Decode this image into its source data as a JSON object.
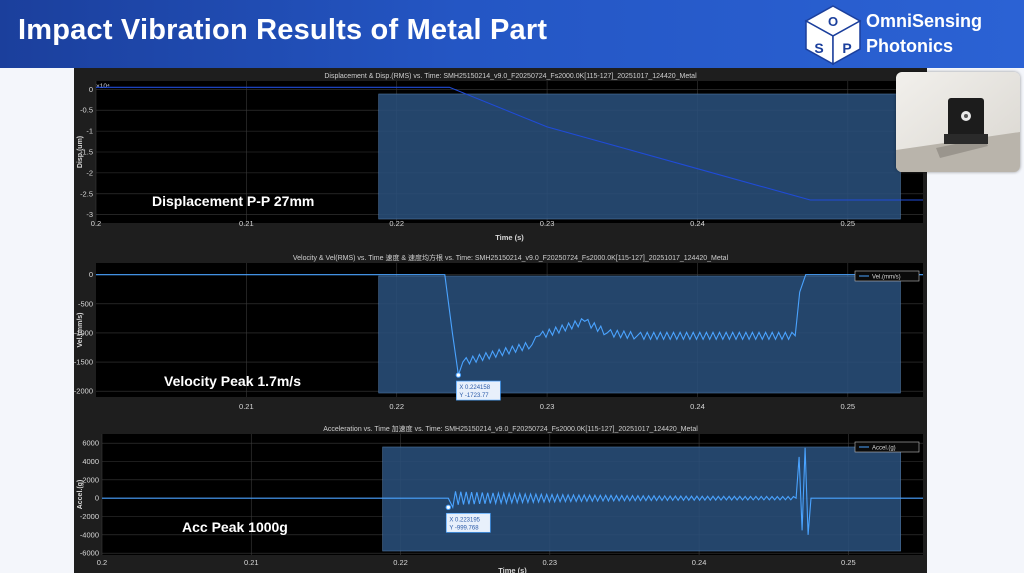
{
  "slide": {
    "title": "Impact Vibration Results of Metal Part",
    "brand_line1": "OmniSensing",
    "brand_line2": "Photonics",
    "logo_letters": [
      "O",
      "S",
      "P"
    ]
  },
  "colors": {
    "header": "#2456c4",
    "plot_bg": "#000000",
    "highlight": "#2a4f7a",
    "trace": "#1f4bd8",
    "trace_light": "#4aa3ff"
  },
  "chart_data": [
    {
      "type": "line",
      "title": "Displacement & Disp.(RMS) vs. Time: SMH25150214_v9.0_F20250724_Fs2000.0K[115-127]_20251017_124420_Metal",
      "xlabel": "Time (s)",
      "ylabel": "Disp.(um)",
      "y_exponent": "×10⁴",
      "xlim": [
        0.2,
        0.255
      ],
      "ylim": [
        -3.2,
        0.2
      ],
      "xticks": [
        0.2,
        0.21,
        0.22,
        0.23,
        0.24,
        0.25
      ],
      "xtick_labels": [
        "0.2",
        "0.21",
        "0.22",
        "0.23",
        "0.24",
        "0.25"
      ],
      "yticks": [
        0,
        -0.5,
        -1,
        -1.5,
        -2,
        -2.5,
        -3
      ],
      "ytick_labels": [
        "0",
        "-0.5",
        "-1",
        "-1.5",
        "-2",
        "-2.5",
        "-3"
      ],
      "highlight": [
        0.2188,
        0.2535
      ],
      "annotation": "Displacement P-P 27mm",
      "series": [
        {
          "x": [
            0.2,
            0.2235,
            0.23,
            0.24,
            0.2475,
            0.255
          ],
          "y": [
            0.05,
            0.05,
            -0.9,
            -1.9,
            -2.65,
            -2.65
          ]
        }
      ]
    },
    {
      "type": "line",
      "title": "Velocity & Vel(RMS) vs. Time 速度 & 速度均方根 vs. Time: SMH25150214_v9.0_F20250724_Fs2000.0K[115-127]_20251017_124420_Metal",
      "xlabel": "",
      "ylabel": "Vel.(mm/s)",
      "legend": "Vel.(mm/s)",
      "legend_position": "top-right",
      "xlim": [
        0.2,
        0.255
      ],
      "ylim": [
        -2100,
        200
      ],
      "xticks": [
        0.21,
        0.22,
        0.23,
        0.24,
        0.25
      ],
      "xtick_labels": [
        "0.21",
        "0.22",
        "0.23",
        "0.24",
        "0.25"
      ],
      "yticks": [
        0,
        -500,
        -1000,
        -1500,
        -2000
      ],
      "ytick_labels": [
        "0",
        "-500",
        "-1000",
        "-1500",
        "-2000"
      ],
      "highlight": [
        0.2188,
        0.2535
      ],
      "annotation": "Velocity Peak 1.7m/s",
      "datatip": {
        "x": 0.2241,
        "y": -1723.77,
        "label_x": "X 0.224158",
        "label_y": "Y -1723.77"
      },
      "series": [
        {
          "x": [
            0.2,
            0.2232,
            0.2237,
            0.2241,
            0.2244,
            0.229,
            0.2295,
            0.2325,
            0.234,
            0.236,
            0.2465,
            0.2468,
            0.2472,
            0.2475,
            0.255
          ],
          "y": [
            0,
            0,
            -1000,
            -1724,
            -1500,
            -1200,
            -1050,
            -800,
            -1000,
            -1050,
            -1050,
            -300,
            0,
            0,
            0
          ]
        }
      ]
    },
    {
      "type": "line",
      "title": "Acceleration vs. Time 加速度 vs. Time: SMH25150214_v9.0_F20250724_Fs2000.0K[115-127]_20251017_124420_Metal",
      "xlabel": "Time (s)",
      "ylabel": "Accel.(g)",
      "legend": "Accel.(g)",
      "legend_position": "top-right",
      "xlim": [
        0.2,
        0.255
      ],
      "ylim": [
        -6200,
        7000
      ],
      "xticks": [
        0.2,
        0.21,
        0.22,
        0.23,
        0.24,
        0.25
      ],
      "xtick_labels": [
        "0.2",
        "0.21",
        "0.22",
        "0.23",
        "0.24",
        "0.25"
      ],
      "yticks": [
        6000,
        4000,
        2000,
        0,
        -2000,
        -4000,
        -6000
      ],
      "ytick_labels": [
        "6000",
        "4000",
        "2000",
        "0",
        "-2000",
        "-4000",
        "-6000"
      ],
      "highlight": [
        0.2188,
        0.2535
      ],
      "annotation": "Acc Peak 1000g",
      "datatip": {
        "x": 0.2232,
        "y": -999.768,
        "label_x": "X 0.223195",
        "label_y": "Y -999.768"
      },
      "series": [
        {
          "x": [
            0.2,
            0.2232,
            0.2235,
            0.2465,
            0.2467,
            0.2469,
            0.2471,
            0.2473,
            0.2475,
            0.255
          ],
          "y": [
            0,
            0,
            -1000,
            0,
            4500,
            -3500,
            5500,
            -4000,
            0,
            0
          ]
        }
      ]
    }
  ]
}
